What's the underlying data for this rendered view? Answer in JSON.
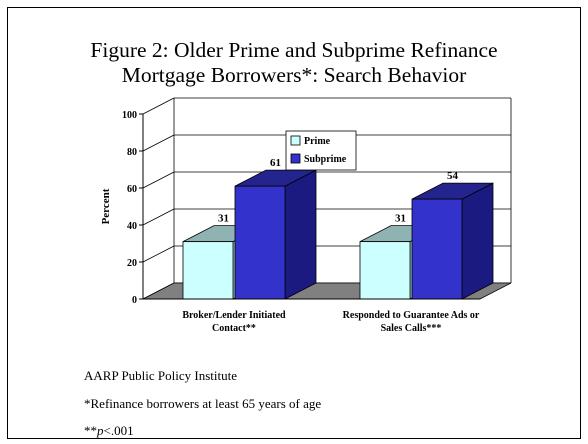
{
  "title": {
    "line1": "Figure 2:  Older Prime and Subprime Refinance",
    "line2": "Mortgage Borrowers*: Search Behavior"
  },
  "chart_data": {
    "type": "bar",
    "style": "3d-clustered-column",
    "ylabel": "Percent",
    "ylim": [
      0,
      100
    ],
    "yticks": [
      0,
      20,
      40,
      60,
      80,
      100
    ],
    "grid": true,
    "legend_position": "top-center",
    "categories": [
      [
        "Broker/Lender Initiated",
        "Contact**"
      ],
      [
        "Responded to Guarantee Ads or",
        "Sales Calls***"
      ]
    ],
    "series": [
      {
        "name": "Prime",
        "values": [
          31,
          31
        ],
        "color": "#ccffff",
        "top_color": "#8fb3b3",
        "side_color": "#99cccc"
      },
      {
        "name": "Subprime",
        "values": [
          61,
          54
        ],
        "color": "#3333cc",
        "top_color": "#24248f",
        "side_color": "#1a1a80"
      }
    ]
  },
  "notes": {
    "source": "AARP Public Policy Institute",
    "footnote1": "*Refinance borrowers at least 65 years of age",
    "footnote2_prefix": "**",
    "footnote2_p": "p",
    "footnote2_suffix": "<.001"
  }
}
